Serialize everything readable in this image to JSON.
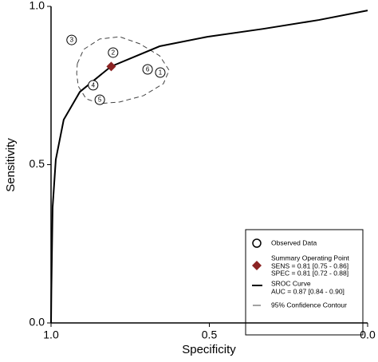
{
  "chart_data": {
    "type": "sroc",
    "xlabel": "Specificity",
    "ylabel": "Sensitivity",
    "xlim": [
      1.0,
      0.0
    ],
    "ylim": [
      0.0,
      1.0
    ],
    "xticks": [
      {
        "value": 1.0,
        "label": "1.0"
      },
      {
        "value": 0.5,
        "label": "0.5"
      },
      {
        "value": 0.0,
        "label": "0.0"
      }
    ],
    "yticks": [
      {
        "value": 0.0,
        "label": "0.0"
      },
      {
        "value": 0.5,
        "label": "0.5"
      },
      {
        "value": 1.0,
        "label": "1.0"
      }
    ],
    "observed": {
      "name": "Observed Data",
      "labels": [
        "1",
        "2",
        "3",
        "4",
        "5",
        "6"
      ],
      "x": [
        0.655,
        0.804,
        0.935,
        0.867,
        0.846,
        0.695
      ],
      "y": [
        0.791,
        0.854,
        0.894,
        0.751,
        0.705,
        0.801
      ]
    },
    "summary": {
      "name": "Summary Operating  Point",
      "sens_label": "SENS = 0.81 [0.75 - 0.86]",
      "spec_label": "SPEC = 0.81 [0.72 - 0.88]",
      "x": 0.81,
      "y": 0.81,
      "color": "#8b2323"
    },
    "curve": {
      "name": "SROC Curve",
      "auc_label": "AUC = 0.87 [0.84 - 0.90]",
      "x": [
        1.0,
        0.999,
        0.995,
        0.985,
        0.96,
        0.909,
        0.811,
        0.657,
        0.506,
        0.33,
        0.154,
        0.0
      ],
      "y": [
        0.0,
        0.1,
        0.365,
        0.516,
        0.642,
        0.73,
        0.81,
        0.874,
        0.904,
        0.929,
        0.957,
        0.987
      ]
    },
    "contour": {
      "name": "95% Confidence Contour",
      "x": [
        0.917,
        0.897,
        0.846,
        0.783,
        0.72,
        0.657,
        0.627,
        0.645,
        0.708,
        0.783,
        0.846,
        0.889,
        0.914,
        0.919,
        0.917
      ],
      "y": [
        0.819,
        0.864,
        0.897,
        0.904,
        0.882,
        0.844,
        0.798,
        0.756,
        0.718,
        0.698,
        0.693,
        0.708,
        0.748,
        0.788,
        0.819
      ]
    }
  }
}
